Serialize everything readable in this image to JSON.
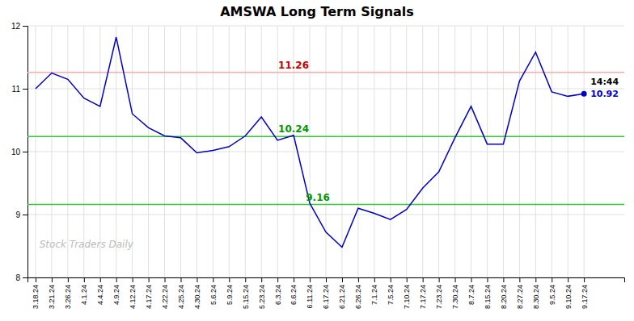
{
  "chart_data": {
    "type": "line",
    "title": "AMSWA Long Term Signals",
    "categories": [
      "3.18.24",
      "3.21.24",
      "3.26.24",
      "4.1.24",
      "4.4.24",
      "4.9.24",
      "4.12.24",
      "4.17.24",
      "4.22.24",
      "4.25.24",
      "4.30.24",
      "5.6.24",
      "5.9.24",
      "5.15.24",
      "5.23.24",
      "6.3.24",
      "6.6.24",
      "6.11.24",
      "6.17.24",
      "6.21.24",
      "6.26.24",
      "7.1.24",
      "7.5.24",
      "7.10.24",
      "7.17.24",
      "7.23.24",
      "7.30.24",
      "8.7.24",
      "8.15.24",
      "8.20.24",
      "8.27.24",
      "8.30.24",
      "9.5.24",
      "9.10.24",
      "9.17.24"
    ],
    "values": [
      11.0,
      11.25,
      11.15,
      10.85,
      10.72,
      11.82,
      10.6,
      10.38,
      10.25,
      10.22,
      9.98,
      10.02,
      10.08,
      10.25,
      10.55,
      10.18,
      10.26,
      9.18,
      8.72,
      8.48,
      9.1,
      9.02,
      8.92,
      9.08,
      9.42,
      9.68,
      10.22,
      10.72,
      10.12,
      10.12,
      11.12,
      11.58,
      10.95,
      10.88,
      10.92
    ],
    "value_labels": [
      null,
      null,
      null,
      null,
      null,
      null,
      null,
      null,
      null,
      null,
      null,
      null,
      null,
      null,
      null,
      null,
      null,
      null,
      null,
      null,
      null,
      null,
      null,
      null,
      null,
      null,
      null,
      null,
      null,
      null,
      null,
      null,
      null,
      null,
      "10.92"
    ],
    "color": "#0000cc",
    "ylim": [
      8,
      12
    ],
    "yticks": [
      8,
      9,
      10,
      11,
      12
    ],
    "grid": true,
    "hlines": [
      {
        "value": 11.26,
        "label": "11.26",
        "color": "#ffaaaa",
        "label_color": "#cc0000"
      },
      {
        "value": 10.24,
        "label": "10.24",
        "color": "#33cc33",
        "label_color": "#009900"
      },
      {
        "value": 9.16,
        "label": "9.16",
        "color": "#33cc33",
        "label_color": "#009900"
      }
    ],
    "annotations": [
      "14:44"
    ],
    "watermark": "Stock Traders Daily"
  }
}
